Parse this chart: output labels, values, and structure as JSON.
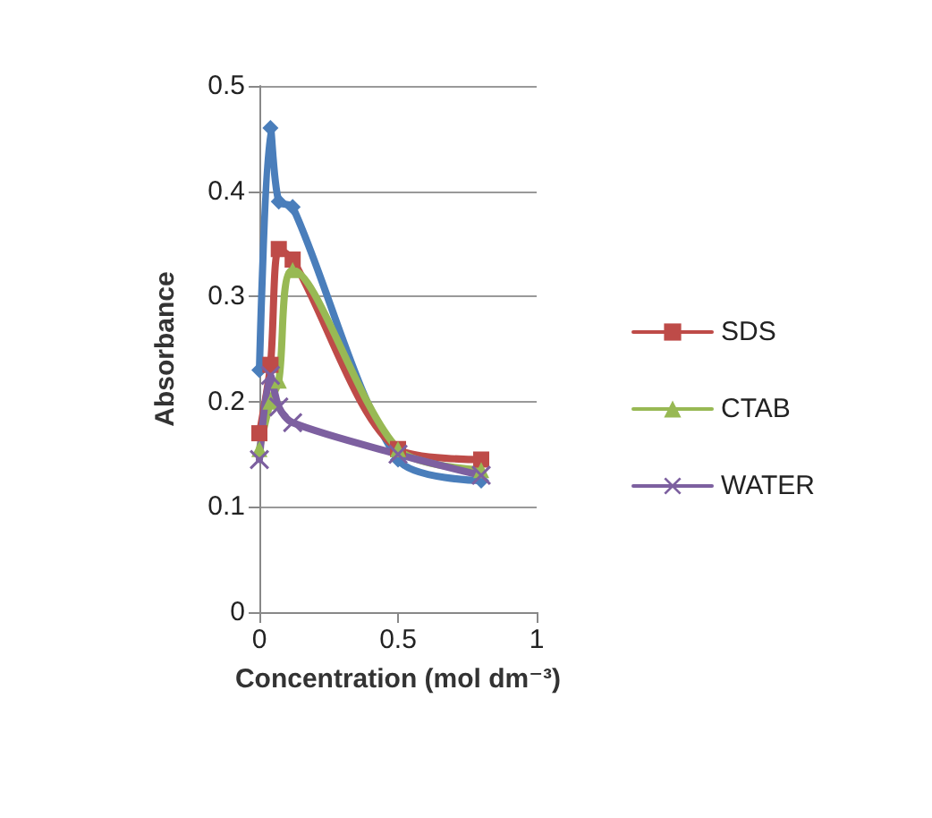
{
  "chart_data": {
    "type": "line",
    "xlabel": "Concentration (mol dm⁻³)",
    "ylabel": "Absorbance",
    "xlim": [
      0,
      1
    ],
    "xticks": [
      0,
      0.5,
      1
    ],
    "ylim": [
      0,
      0.5
    ],
    "yticks": [
      0,
      0.1,
      0.2,
      0.3,
      0.4,
      0.5
    ],
    "grid": "y",
    "legend": "right",
    "line_style": "solid",
    "series": [
      {
        "color": "#4a7ebb",
        "marker": "diamond",
        "x": [
          0,
          0.04,
          0.07,
          0.12,
          0.5,
          0.8
        ],
        "values": [
          0.23,
          0.46,
          0.39,
          0.385,
          0.145,
          0.125
        ]
      },
      {
        "name": "SDS",
        "color": "#be4b48",
        "marker": "square",
        "x": [
          0,
          0.04,
          0.07,
          0.12,
          0.5,
          0.8
        ],
        "values": [
          0.17,
          0.235,
          0.345,
          0.335,
          0.155,
          0.145
        ]
      },
      {
        "name": "CTAB",
        "color": "#98b954",
        "marker": "triangle",
        "x": [
          0,
          0.04,
          0.07,
          0.12,
          0.5,
          0.8
        ],
        "values": [
          0.155,
          0.2,
          0.22,
          0.325,
          0.155,
          0.135
        ]
      },
      {
        "name": "WATER",
        "color": "#7d60a0",
        "marker": "cross",
        "x": [
          0,
          0.04,
          0.07,
          0.12,
          0.5,
          0.8
        ],
        "values": [
          0.145,
          0.225,
          0.195,
          0.18,
          0.15,
          0.13
        ]
      }
    ]
  }
}
